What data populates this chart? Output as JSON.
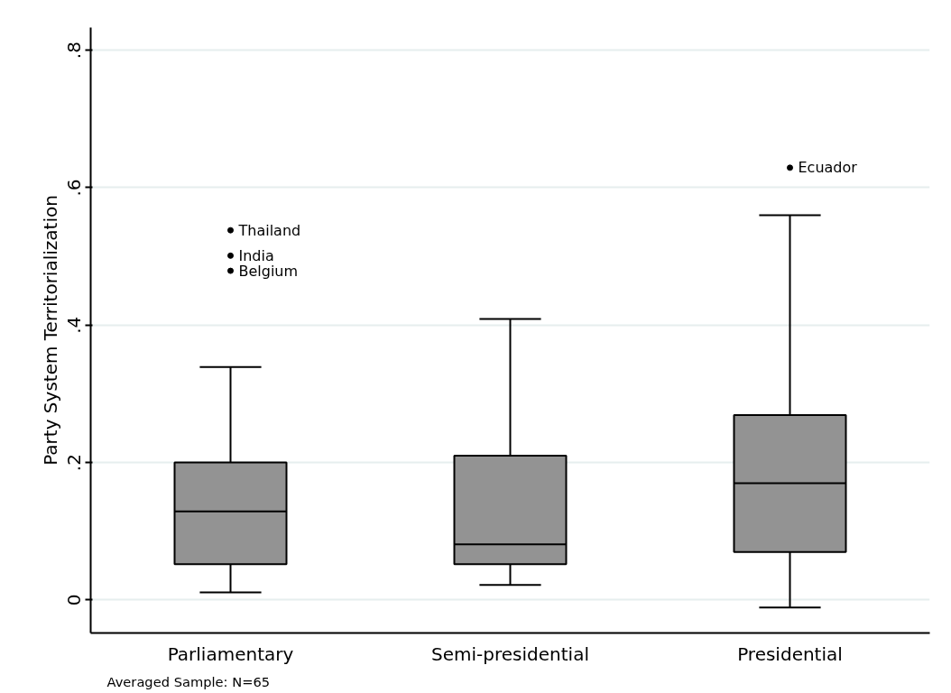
{
  "chart_data": {
    "type": "box",
    "ylabel": "Party System Territorialization",
    "categories": [
      "Parliamentary",
      "Semi-presidential",
      "Presidential"
    ],
    "boxes": [
      {
        "low": 0.011,
        "q1": 0.052,
        "median": 0.129,
        "q3": 0.2,
        "high": 0.339,
        "outliers": [
          0.538,
          0.501,
          0.479
        ]
      },
      {
        "low": 0.022,
        "q1": 0.052,
        "median": 0.081,
        "q3": 0.21,
        "high": 0.409
      },
      {
        "low": -0.011,
        "q1": 0.07,
        "median": 0.17,
        "q3": 0.269,
        "high": 0.56,
        "outliers": [
          0.629
        ]
      }
    ],
    "color": "#939393",
    "ylim": [
      -0.048,
      0.833
    ],
    "yticks": [
      0,
      {
        "value": 0.2,
        "label": ".2"
      },
      {
        "value": 0.4,
        "label": ".4"
      },
      {
        "value": 0.6,
        "label": ".6"
      },
      {
        "value": 0.8,
        "label": ".8"
      }
    ],
    "grid": "y",
    "annotations": [
      "Thailand",
      "India",
      "Belgium",
      "Ecuador",
      "Averaged Sample: N=65"
    ]
  }
}
